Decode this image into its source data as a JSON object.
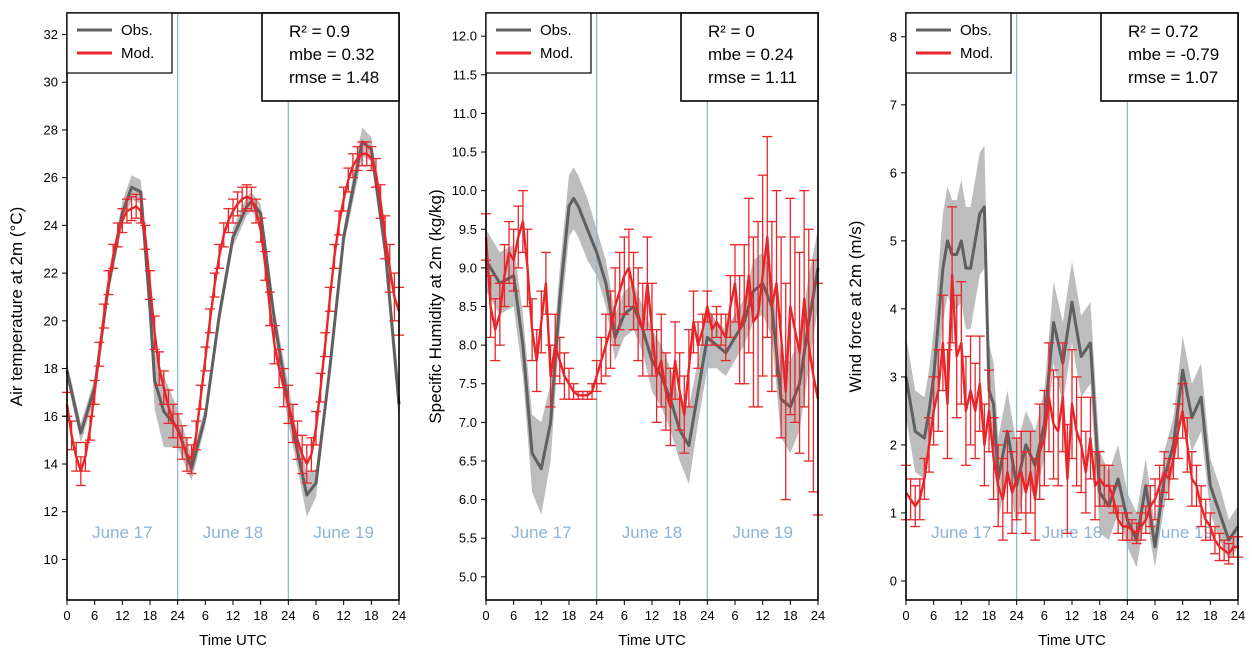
{
  "colors": {
    "obs": "#606060",
    "mod": "#e8262a",
    "band": "#bdbdbd",
    "divider": "#8eb3d4",
    "day_label": "#8eb3d4"
  },
  "chart_data": [
    {
      "type": "line",
      "ylabel": "Air temperature at 2m (°C)",
      "xlabel": "Time UTC",
      "ylim": [
        8.3,
        32.9
      ],
      "yticks": [
        10,
        12,
        14,
        16,
        18,
        20,
        22,
        24,
        26,
        28,
        30,
        32
      ],
      "xticks": [
        "0",
        "6",
        "12",
        "18",
        "24",
        "6",
        "12",
        "18",
        "24",
        "6",
        "12",
        "18",
        "24"
      ],
      "day_labels": [
        "June 17",
        "June 18",
        "June 19"
      ],
      "legend": [
        "Obs.",
        "Mod."
      ],
      "stats": [
        "R² = 0.9",
        "mbe = 0.32",
        "rmse = 1.48"
      ],
      "obs": {
        "name": "Obs.",
        "x": [
          0,
          3,
          6,
          9,
          12,
          14,
          16,
          18,
          19,
          21,
          24,
          27,
          30,
          33,
          36,
          39,
          40,
          42,
          45,
          48,
          50,
          52,
          54,
          57,
          60,
          63,
          64,
          66,
          69,
          72
        ],
        "y": [
          17.9,
          15.3,
          17.2,
          21.5,
          24.5,
          25.6,
          25.4,
          20.5,
          17.5,
          16.2,
          15.5,
          13.8,
          16,
          20.2,
          23.5,
          24.8,
          25,
          24.5,
          20,
          16.5,
          14.5,
          12.7,
          13.2,
          18,
          23.5,
          26.5,
          27.5,
          27.2,
          23,
          16.5
        ],
        "band": [
          0.4,
          0.4,
          0.4,
          0.4,
          0.5,
          0.5,
          0.5,
          0.8,
          1.2,
          1.5,
          0.8,
          0.5,
          0.4,
          0.4,
          0.4,
          0.4,
          0.4,
          0.4,
          0.5,
          0.8,
          0.7,
          0.9,
          0.6,
          0.4,
          0.4,
          0.6,
          0.6,
          0.5,
          0.6,
          0.8
        ]
      },
      "mod": {
        "name": "Mod.",
        "x": [
          0,
          1,
          2,
          3,
          4,
          5,
          6,
          7,
          8,
          9,
          10,
          11,
          12,
          13,
          14,
          15,
          16,
          17,
          18,
          19,
          20,
          21,
          22,
          23,
          24,
          25,
          26,
          27,
          28,
          29,
          30,
          31,
          32,
          33,
          34,
          35,
          36,
          37,
          38,
          39,
          40,
          41,
          42,
          43,
          44,
          45,
          46,
          47,
          48,
          49,
          50,
          51,
          52,
          53,
          54,
          55,
          56,
          57,
          58,
          59,
          60,
          61,
          62,
          63,
          64,
          65,
          66,
          67,
          68,
          69,
          70,
          71,
          72
        ],
        "y": [
          16.5,
          15.2,
          14.3,
          13.7,
          14.3,
          15.5,
          17,
          18.6,
          20.2,
          21.6,
          22.7,
          23.6,
          24.2,
          24.6,
          24.7,
          24.8,
          24.6,
          23.5,
          21.5,
          19.5,
          18,
          17.2,
          16.4,
          15.8,
          15.4,
          14.9,
          14.4,
          14.2,
          15.2,
          16.8,
          18.4,
          20,
          21.5,
          22.7,
          23.6,
          24.2,
          24.6,
          24.9,
          25.1,
          25.2,
          25.1,
          24.6,
          23.8,
          22.3,
          20.5,
          19,
          18,
          17.2,
          16.5,
          15.7,
          15,
          14.4,
          14,
          14.4,
          15.5,
          17.2,
          19,
          20.9,
          22.7,
          24.1,
          25.1,
          25.9,
          26.5,
          26.8,
          27,
          27,
          26.8,
          26.2,
          25,
          23.5,
          22.2,
          21,
          20.4
        ],
        "err": [
          0.5,
          0.6,
          0.6,
          0.6,
          0.6,
          0.5,
          0.5,
          0.5,
          0.5,
          0.5,
          0.5,
          0.5,
          0.5,
          0.5,
          0.5,
          0.5,
          0.5,
          0.5,
          0.6,
          0.7,
          0.7,
          0.7,
          0.7,
          0.7,
          0.7,
          0.7,
          0.7,
          0.6,
          0.6,
          0.5,
          0.5,
          0.5,
          0.5,
          0.5,
          0.5,
          0.5,
          0.5,
          0.5,
          0.5,
          0.5,
          0.5,
          0.5,
          0.5,
          0.6,
          0.7,
          0.8,
          0.8,
          0.8,
          0.8,
          0.8,
          0.8,
          0.8,
          0.8,
          0.7,
          0.7,
          0.6,
          0.5,
          0.5,
          0.5,
          0.5,
          0.5,
          0.5,
          0.5,
          0.5,
          0.5,
          0.5,
          0.5,
          0.6,
          0.7,
          0.9,
          1,
          1,
          1
        ]
      }
    },
    {
      "type": "line",
      "ylabel": "Specific Humidity at 2m (kg/kg)",
      "xlabel": "Time UTC",
      "ylim": [
        4.7,
        12.3
      ],
      "yticks": [
        5.0,
        5.5,
        6.0,
        6.5,
        7.0,
        7.5,
        8.0,
        8.5,
        9.0,
        9.5,
        10.0,
        10.5,
        11.0,
        11.5,
        12.0
      ],
      "xticks": [
        "0",
        "6",
        "12",
        "18",
        "24",
        "6",
        "12",
        "18",
        "24",
        "6",
        "12",
        "18",
        "24"
      ],
      "day_labels": [
        "June 17",
        "June 18",
        "June 19"
      ],
      "legend": [
        "Obs.",
        "Mod."
      ],
      "stats": [
        "R² = 0",
        "mbe = 0.24",
        "rmse = 1.11"
      ],
      "obs": {
        "name": "Obs.",
        "x": [
          0,
          3,
          6,
          8,
          10,
          12,
          14,
          16,
          18,
          19,
          20,
          22,
          24,
          26,
          28,
          30,
          32,
          34,
          36,
          38,
          40,
          42,
          44,
          46,
          48,
          50,
          52,
          54,
          56,
          58,
          60,
          62,
          64,
          66,
          68,
          70,
          72
        ],
        "y": [
          9.1,
          8.8,
          8.9,
          8,
          6.6,
          6.4,
          7,
          8.6,
          9.8,
          9.9,
          9.8,
          9.5,
          9.2,
          8.8,
          8.1,
          8.4,
          8.5,
          8.2,
          7.8,
          7.6,
          7.3,
          6.9,
          6.7,
          7.4,
          8.1,
          8,
          7.9,
          8.1,
          8.3,
          8.7,
          8.8,
          8.5,
          7.3,
          7.2,
          7.5,
          8.3,
          9
        ],
        "band": [
          0.4,
          0.4,
          0.4,
          0.4,
          0.5,
          0.6,
          0.5,
          0.4,
          0.4,
          0.4,
          0.4,
          0.4,
          0.3,
          0.3,
          0.3,
          0.3,
          0.3,
          0.3,
          0.4,
          0.4,
          0.4,
          0.4,
          0.5,
          0.4,
          0.4,
          0.3,
          0.3,
          0.3,
          0.3,
          0.4,
          0.4,
          0.4,
          0.5,
          0.6,
          0.6,
          0.6,
          0.5
        ]
      },
      "mod": {
        "name": "Mod.",
        "x": [
          0,
          1,
          2,
          3,
          4,
          5,
          6,
          7,
          8,
          9,
          10,
          11,
          12,
          13,
          14,
          15,
          16,
          17,
          18,
          19,
          20,
          21,
          22,
          23,
          24,
          25,
          26,
          27,
          28,
          29,
          30,
          31,
          32,
          33,
          34,
          35,
          36,
          37,
          38,
          39,
          40,
          41,
          42,
          43,
          44,
          45,
          46,
          47,
          48,
          49,
          50,
          51,
          52,
          53,
          54,
          55,
          56,
          57,
          58,
          59,
          60,
          61,
          62,
          63,
          64,
          65,
          66,
          67,
          68,
          69,
          70,
          71,
          72
        ],
        "y": [
          9.4,
          8.5,
          8.2,
          8.4,
          8.9,
          9.2,
          9.1,
          9.4,
          9.6,
          9,
          8.2,
          7.8,
          8.3,
          8.8,
          7.6,
          8,
          7.8,
          7.6,
          7.5,
          7.4,
          7.35,
          7.35,
          7.35,
          7.4,
          7.6,
          7.8,
          8,
          8.2,
          8.5,
          8.7,
          8.9,
          9,
          8.7,
          8.4,
          8.2,
          8.8,
          8.2,
          7.6,
          7.8,
          7.4,
          7.2,
          7.8,
          7.4,
          7.1,
          7.7,
          8.3,
          8,
          8.2,
          8.5,
          8.2,
          8.3,
          8.2,
          8.1,
          8.5,
          8.8,
          8.2,
          8.4,
          8.9,
          8.3,
          8.4,
          8.9,
          9.4,
          8.5,
          8.8,
          8.1,
          7.4,
          8.5,
          8.2,
          7.9,
          8.6,
          8.0,
          7.6,
          7.3
        ],
        "err": [
          0.3,
          0.4,
          0.4,
          0.4,
          0.4,
          0.4,
          0.4,
          0.4,
          0.4,
          0.5,
          0.4,
          0.4,
          0.4,
          0.4,
          0.4,
          0.4,
          0.3,
          0.3,
          0.2,
          0.1,
          0.05,
          0.05,
          0.05,
          0.1,
          0.2,
          0.3,
          0.4,
          0.5,
          0.5,
          0.5,
          0.5,
          0.5,
          0.5,
          0.6,
          0.6,
          0.6,
          0.6,
          0.6,
          0.6,
          0.5,
          0.5,
          0.5,
          0.5,
          0.5,
          0.5,
          0.4,
          0.3,
          0.2,
          0.2,
          0.2,
          0.2,
          0.2,
          0.3,
          0.4,
          0.5,
          0.7,
          0.9,
          1.0,
          1.1,
          1.2,
          1.3,
          1.3,
          1.1,
          1.2,
          1.3,
          1.4,
          1.4,
          1.2,
          1.3,
          1.4,
          1.5,
          1.5,
          1.5
        ]
      }
    },
    {
      "type": "line",
      "ylabel": "Wind force at 2m (m/s)",
      "xlabel": "Time UTC",
      "ylim": [
        -0.28,
        8.35
      ],
      "yticks": [
        0,
        1,
        2,
        3,
        4,
        5,
        6,
        7,
        8
      ],
      "xticks": [
        "0",
        "6",
        "12",
        "18",
        "24",
        "6",
        "12",
        "18",
        "24",
        "6",
        "12",
        "18",
        "24"
      ],
      "day_labels": [
        "June 17",
        "June 18",
        "June 19"
      ],
      "legend": [
        "Obs.",
        "Mod."
      ],
      "stats": [
        "R² = 0.72",
        "mbe = -0.79",
        "rmse = 1.07"
      ],
      "obs": {
        "name": "Obs.",
        "x": [
          0,
          2,
          4,
          5,
          6,
          8,
          9,
          10,
          11,
          12,
          13,
          14,
          16,
          17,
          18,
          19,
          20,
          22,
          24,
          26,
          28,
          30,
          32,
          34,
          36,
          38,
          40,
          42,
          44,
          46,
          48,
          50,
          52,
          54,
          56,
          58,
          60,
          62,
          64,
          66,
          68,
          70,
          72
        ],
        "y": [
          3,
          2.2,
          2.1,
          2.5,
          3,
          4.6,
          5,
          4.8,
          4.8,
          5,
          4.6,
          4.6,
          5.4,
          5.5,
          2.8,
          2.6,
          1.5,
          2.2,
          1.4,
          2,
          1.7,
          2.3,
          3.8,
          3.2,
          4.1,
          3.3,
          3.5,
          1.3,
          1.1,
          1.5,
          0.9,
          0.6,
          1.4,
          0.5,
          1.5,
          2,
          3.1,
          2.4,
          2.7,
          1.4,
          1,
          0.6,
          0.8
        ],
        "band": [
          0.6,
          0.6,
          0.6,
          0.6,
          0.7,
          0.8,
          0.8,
          0.8,
          0.8,
          0.9,
          0.9,
          0.9,
          0.9,
          0.9,
          0.7,
          0.6,
          0.6,
          0.6,
          0.6,
          0.5,
          0.5,
          0.5,
          0.6,
          0.6,
          0.6,
          0.6,
          0.6,
          0.6,
          0.5,
          0.5,
          0.4,
          0.4,
          0.4,
          0.3,
          0.4,
          0.4,
          0.5,
          0.5,
          0.5,
          0.4,
          0.4,
          0.3,
          0.3
        ]
      },
      "mod": {
        "name": "Mod.",
        "x": [
          0,
          1,
          2,
          3,
          4,
          5,
          6,
          7,
          8,
          9,
          10,
          11,
          12,
          13,
          14,
          15,
          16,
          17,
          18,
          19,
          20,
          21,
          22,
          23,
          24,
          25,
          26,
          27,
          28,
          29,
          30,
          31,
          32,
          33,
          34,
          35,
          36,
          37,
          38,
          39,
          40,
          41,
          42,
          43,
          44,
          45,
          46,
          47,
          48,
          49,
          50,
          51,
          52,
          53,
          54,
          55,
          56,
          57,
          58,
          59,
          60,
          61,
          62,
          63,
          64,
          65,
          66,
          67,
          68,
          69,
          70,
          71,
          72
        ],
        "y": [
          1.3,
          1.2,
          1.1,
          1.2,
          1.5,
          2,
          2.5,
          2.8,
          3.5,
          2.6,
          4.5,
          3.3,
          3.5,
          2.5,
          2.8,
          2.5,
          2.9,
          2,
          2.5,
          1.8,
          1.4,
          1.2,
          1.6,
          1.3,
          1.5,
          1.6,
          1.3,
          1.6,
          1.2,
          1.9,
          2.1,
          2.7,
          2.3,
          2.2,
          2.7,
          1.5,
          2.6,
          2.2,
          2,
          1.6,
          2.1,
          1.4,
          1.5,
          1.4,
          1.4,
          1.2,
          0.9,
          0.8,
          0.8,
          0.75,
          0.7,
          0.8,
          0.9,
          1.1,
          1.2,
          1.4,
          1.6,
          1.5,
          1.8,
          2.2,
          2.5,
          2,
          1.5,
          1.4,
          1.1,
          0.9,
          0.8,
          0.6,
          0.5,
          0.45,
          0.4,
          0.5,
          0.5
        ],
        "err": [
          0.4,
          0.3,
          0.3,
          0.3,
          0.3,
          0.4,
          0.5,
          0.6,
          0.7,
          0.8,
          1.0,
          0.9,
          0.9,
          0.8,
          0.8,
          0.7,
          0.7,
          0.6,
          0.6,
          0.6,
          0.6,
          0.6,
          0.6,
          0.6,
          0.6,
          0.6,
          0.6,
          0.6,
          0.6,
          0.7,
          0.7,
          0.8,
          0.8,
          0.8,
          0.8,
          0.8,
          0.8,
          0.8,
          0.7,
          0.6,
          0.6,
          0.5,
          0.4,
          0.3,
          0.3,
          0.2,
          0.2,
          0.2,
          0.2,
          0.15,
          0.15,
          0.2,
          0.2,
          0.3,
          0.3,
          0.3,
          0.3,
          0.3,
          0.3,
          0.4,
          0.4,
          0.4,
          0.4,
          0.3,
          0.3,
          0.3,
          0.2,
          0.2,
          0.2,
          0.15,
          0.15,
          0.15,
          0.15
        ]
      }
    }
  ]
}
